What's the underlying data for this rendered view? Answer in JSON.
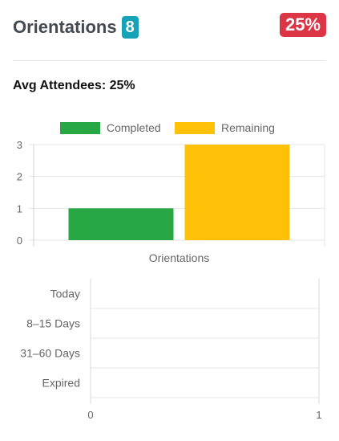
{
  "header": {
    "title": "Orientations",
    "count_badge": "8",
    "percent_badge": "25%"
  },
  "summary": {
    "label": "Avg Attendees:",
    "value": "25%"
  },
  "colors": {
    "completed": "#28a745",
    "remaining": "#ffc107",
    "badge_info": "#17a2b8",
    "badge_danger": "#dc3545"
  },
  "chart_data": [
    {
      "type": "bar",
      "categories": [
        "Orientations"
      ],
      "series": [
        {
          "name": "Completed",
          "values": [
            1
          ]
        },
        {
          "name": "Remaining",
          "values": [
            3
          ]
        }
      ],
      "ylim": [
        0,
        3
      ],
      "yticks": [
        "0",
        "1",
        "2",
        "3"
      ],
      "legend": "top",
      "grid": true
    },
    {
      "type": "bar",
      "orientation": "horizontal",
      "categories": [
        "Today",
        "8–15 Days",
        "31–60 Days",
        "Expired"
      ],
      "values": [
        0,
        0,
        0,
        0
      ],
      "xlim": [
        0,
        1
      ],
      "xticks": [
        "0",
        "1"
      ],
      "grid": true
    }
  ]
}
